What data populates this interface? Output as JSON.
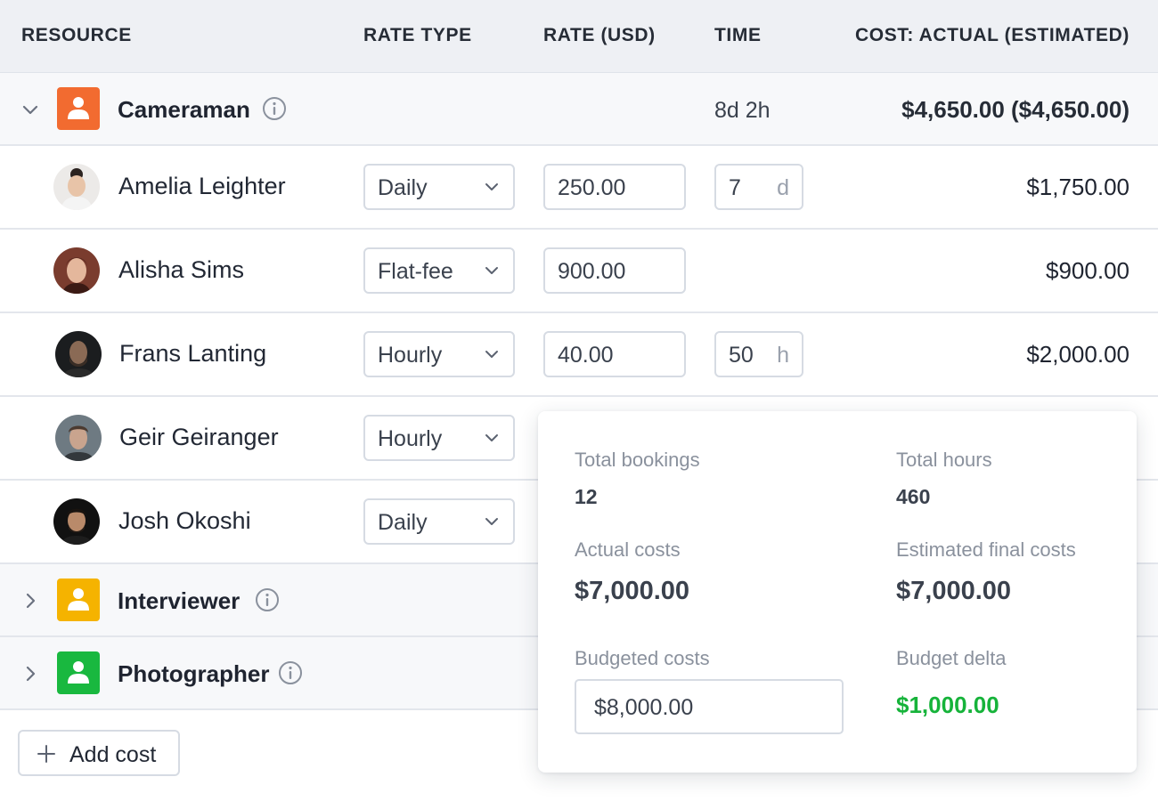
{
  "header": {
    "resource": "RESOURCE",
    "rate_type": "RATE TYPE",
    "rate": "RATE (USD)",
    "time": "TIME",
    "cost": "COST: ACTUAL (ESTIMATED)"
  },
  "groups": [
    {
      "name": "Cameraman",
      "time": "8d 2h",
      "cost": "$4,650.00 ($4,650.00)",
      "color": "#f26b30",
      "expanded": true
    },
    {
      "name": "Interviewer",
      "color": "#f5b300",
      "expanded": false
    },
    {
      "name": "Photographer",
      "color": "#19b83f",
      "expanded": false
    }
  ],
  "people": [
    {
      "name": "Amelia Leighter",
      "rate_type": "Daily",
      "rate": "250.00",
      "time_value": "7",
      "time_unit": "d",
      "cost": "$1,750.00"
    },
    {
      "name": "Alisha Sims",
      "rate_type": "Flat-fee",
      "rate": "900.00",
      "cost": "$900.00"
    },
    {
      "name": "Frans Lanting",
      "rate_type": "Hourly",
      "rate": "40.00",
      "time_value": "50",
      "time_unit": "h",
      "cost": "$2,000.00"
    },
    {
      "name": "Geir Geiranger",
      "rate_type": "Hourly"
    },
    {
      "name": "Josh Okoshi",
      "rate_type": "Daily"
    }
  ],
  "add_button": {
    "label": "Add cost",
    "icon": "plus-icon"
  },
  "popover": {
    "total_bookings_label": "Total bookings",
    "total_bookings": "12",
    "total_hours_label": "Total hours",
    "total_hours": "460",
    "actual_costs_label": "Actual costs",
    "actual_costs": "$7,000.00",
    "estimated_final_label": "Estimated final costs",
    "estimated_final": "$7,000.00",
    "budgeted_label": "Budgeted costs",
    "budgeted_value": "$8,000.00",
    "budget_delta_label": "Budget delta",
    "budget_delta": "$1,000.00",
    "delta_color": "#16b33a"
  }
}
